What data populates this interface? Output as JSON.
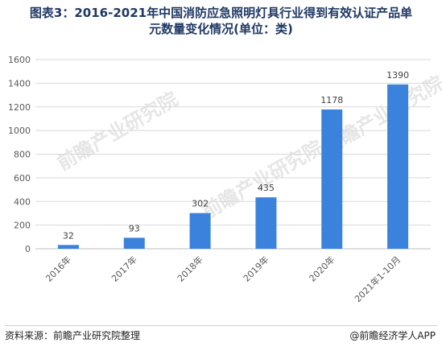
{
  "title_line1": "图表3：2016-2021年中国消防应急照明灯具行业得到有效认证产品单",
  "title_line2": "元数量变化情况(单位：类)",
  "source": "资料来源：前瞻产业研究院整理",
  "brand": "@前瞻经济学人APP",
  "watermark": "前瞻产业研究院",
  "colors": {
    "bar": "#3b82dc",
    "grid": "#d9d9d9",
    "axis_text": "#595959",
    "title": "#1f3864"
  },
  "chart_data": {
    "type": "bar",
    "categories": [
      "2016年",
      "2017年",
      "2018年",
      "2019年",
      "2020年",
      "2021年1-10月"
    ],
    "values": [
      32,
      93,
      302,
      435,
      1178,
      1390
    ],
    "data_labels": [
      "32",
      "93",
      "302",
      "435",
      "1178",
      "1390"
    ],
    "yticks": [
      "0",
      "200",
      "400",
      "600",
      "800",
      "1000",
      "1200",
      "1400",
      "1600"
    ],
    "ylim": [
      0,
      1600
    ],
    "grid": true
  }
}
